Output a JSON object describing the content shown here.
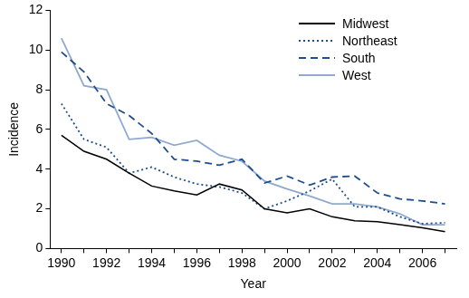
{
  "chart_data": {
    "type": "line",
    "x_label": "Year",
    "y_label": "Incidence",
    "categories": [
      "1990",
      null,
      "1992",
      null,
      "1994",
      null,
      "1996",
      null,
      "1998",
      null,
      "2000",
      null,
      "2002",
      null,
      "2004",
      null,
      "2006",
      null
    ],
    "series": [
      {
        "name": "Midwest",
        "color": "#000000",
        "line_style": "solid",
        "values": [
          5.7,
          4.9,
          4.5,
          3.8,
          3.15,
          2.9,
          2.7,
          3.25,
          2.95,
          2.0,
          1.8,
          2.0,
          1.6,
          1.4,
          1.35,
          1.2,
          1.05,
          0.85
        ]
      },
      {
        "name": "Northeast",
        "color": "#1f4e8c",
        "line_style": "dotted",
        "values": [
          7.3,
          5.5,
          5.1,
          3.8,
          4.1,
          3.6,
          3.25,
          3.1,
          2.8,
          2.0,
          2.4,
          2.9,
          3.5,
          2.1,
          2.1,
          1.6,
          1.25,
          1.3
        ]
      },
      {
        "name": "South",
        "color": "#1f4e8c",
        "line_style": "dashed",
        "values": [
          9.9,
          8.9,
          7.3,
          6.7,
          5.8,
          4.5,
          4.4,
          4.2,
          4.5,
          3.3,
          3.65,
          3.2,
          3.6,
          3.65,
          2.8,
          2.5,
          2.4,
          2.25
        ]
      },
      {
        "name": "West",
        "color": "#8fa9cf",
        "line_style": "solid",
        "values": [
          10.6,
          8.2,
          8.0,
          5.5,
          5.6,
          5.2,
          5.45,
          4.7,
          4.4,
          3.4,
          3.0,
          2.65,
          2.25,
          2.25,
          2.1,
          1.75,
          1.2,
          1.2
        ]
      }
    ],
    "ylim": [
      0,
      12
    ],
    "yticks": [
      0,
      2,
      4,
      6,
      8,
      10,
      12
    ],
    "grid": false,
    "legend": "upper right"
  }
}
